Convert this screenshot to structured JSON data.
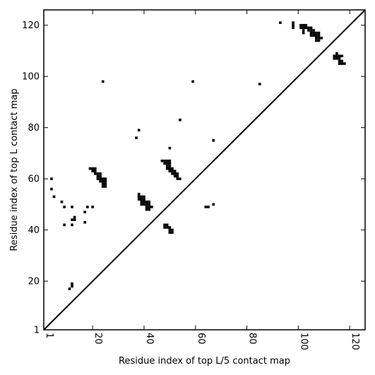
{
  "chart_data": {
    "type": "scatter",
    "title": "",
    "xlabel": "Residue index of top L/5 contact map",
    "ylabel": "Residue index of top L contact map",
    "xlim": [
      1,
      126
    ],
    "ylim": [
      1,
      126
    ],
    "xticks": [
      1,
      20,
      40,
      60,
      80,
      100,
      120
    ],
    "yticks": [
      1,
      20,
      40,
      60,
      80,
      100,
      120
    ],
    "xtick_labels": [
      "1",
      "20",
      "40",
      "60",
      "80",
      "100",
      "120"
    ],
    "ytick_labels": [
      "1",
      "20",
      "40",
      "60",
      "80",
      "100",
      "120"
    ],
    "xtick_rotation": 90,
    "grid": false,
    "marker": "square",
    "marker_color": "#000000",
    "diagonal": {
      "from": [
        1,
        1
      ],
      "to": [
        126,
        126
      ],
      "color": "#000000"
    },
    "points": [
      [
        4,
        60
      ],
      [
        4,
        56
      ],
      [
        5,
        53
      ],
      [
        8,
        51
      ],
      [
        9,
        49
      ],
      [
        12,
        49
      ],
      [
        9,
        42
      ],
      [
        11,
        17
      ],
      [
        12,
        18
      ],
      [
        12,
        19
      ],
      [
        12,
        44
      ],
      [
        13,
        44
      ],
      [
        13,
        45
      ],
      [
        12,
        42
      ],
      [
        17,
        47
      ],
      [
        18,
        49
      ],
      [
        20,
        49
      ],
      [
        17,
        43
      ],
      [
        19,
        64
      ],
      [
        20,
        64
      ],
      [
        21,
        64
      ],
      [
        20,
        63
      ],
      [
        21,
        63
      ],
      [
        22,
        62
      ],
      [
        21,
        62
      ],
      [
        23,
        62
      ],
      [
        22,
        61
      ],
      [
        23,
        61
      ],
      [
        22,
        60
      ],
      [
        23,
        60
      ],
      [
        24,
        60
      ],
      [
        25,
        60
      ],
      [
        23,
        59
      ],
      [
        24,
        59
      ],
      [
        25,
        59
      ],
      [
        24,
        58
      ],
      [
        25,
        58
      ],
      [
        24,
        57
      ],
      [
        25,
        57
      ],
      [
        24,
        98
      ],
      [
        37,
        76
      ],
      [
        38,
        79
      ],
      [
        38,
        54
      ],
      [
        38,
        53
      ],
      [
        39,
        53
      ],
      [
        40,
        53
      ],
      [
        38,
        52
      ],
      [
        39,
        52
      ],
      [
        40,
        52
      ],
      [
        39,
        51
      ],
      [
        40,
        51
      ],
      [
        41,
        51
      ],
      [
        42,
        51
      ],
      [
        39,
        50
      ],
      [
        40,
        50
      ],
      [
        41,
        50
      ],
      [
        42,
        50
      ],
      [
        41,
        49
      ],
      [
        42,
        49
      ],
      [
        43,
        49
      ],
      [
        41,
        48
      ],
      [
        42,
        48
      ],
      [
        47,
        67
      ],
      [
        48,
        67
      ],
      [
        49,
        67
      ],
      [
        50,
        67
      ],
      [
        48,
        66
      ],
      [
        49,
        66
      ],
      [
        50,
        66
      ],
      [
        49,
        65
      ],
      [
        50,
        65
      ],
      [
        49,
        64
      ],
      [
        50,
        64
      ],
      [
        51,
        64
      ],
      [
        50,
        63
      ],
      [
        51,
        63
      ],
      [
        52,
        63
      ],
      [
        51,
        62
      ],
      [
        52,
        62
      ],
      [
        53,
        62
      ],
      [
        52,
        61
      ],
      [
        53,
        61
      ],
      [
        53,
        60
      ],
      [
        54,
        60
      ],
      [
        50,
        72
      ],
      [
        54,
        83
      ],
      [
        48,
        42
      ],
      [
        49,
        42
      ],
      [
        48,
        41
      ],
      [
        49,
        41
      ],
      [
        50,
        41
      ],
      [
        50,
        40
      ],
      [
        51,
        40
      ],
      [
        50,
        39
      ],
      [
        51,
        39
      ],
      [
        59,
        98
      ],
      [
        64,
        49
      ],
      [
        65,
        49
      ],
      [
        67,
        75
      ],
      [
        67,
        50
      ],
      [
        85,
        97
      ],
      [
        93,
        121
      ],
      [
        98,
        121
      ],
      [
        98,
        120
      ],
      [
        98,
        119
      ],
      [
        101,
        120
      ],
      [
        102,
        120
      ],
      [
        103,
        120
      ],
      [
        101,
        119
      ],
      [
        102,
        119
      ],
      [
        103,
        119
      ],
      [
        104,
        119
      ],
      [
        105,
        119
      ],
      [
        102,
        118
      ],
      [
        104,
        118
      ],
      [
        105,
        118
      ],
      [
        106,
        118
      ],
      [
        102,
        117
      ],
      [
        105,
        117
      ],
      [
        106,
        117
      ],
      [
        107,
        117
      ],
      [
        108,
        117
      ],
      [
        105,
        116
      ],
      [
        106,
        116
      ],
      [
        107,
        116
      ],
      [
        108,
        116
      ],
      [
        107,
        115
      ],
      [
        108,
        115
      ],
      [
        109,
        115
      ],
      [
        107,
        114
      ],
      [
        108,
        114
      ],
      [
        115,
        109
      ],
      [
        114,
        108
      ],
      [
        115,
        108
      ],
      [
        116,
        108
      ],
      [
        117,
        108
      ],
      [
        114,
        107
      ],
      [
        115,
        107
      ],
      [
        116,
        107
      ],
      [
        117,
        106
      ],
      [
        116,
        106
      ],
      [
        116,
        105
      ],
      [
        117,
        105
      ],
      [
        118,
        105
      ]
    ]
  }
}
